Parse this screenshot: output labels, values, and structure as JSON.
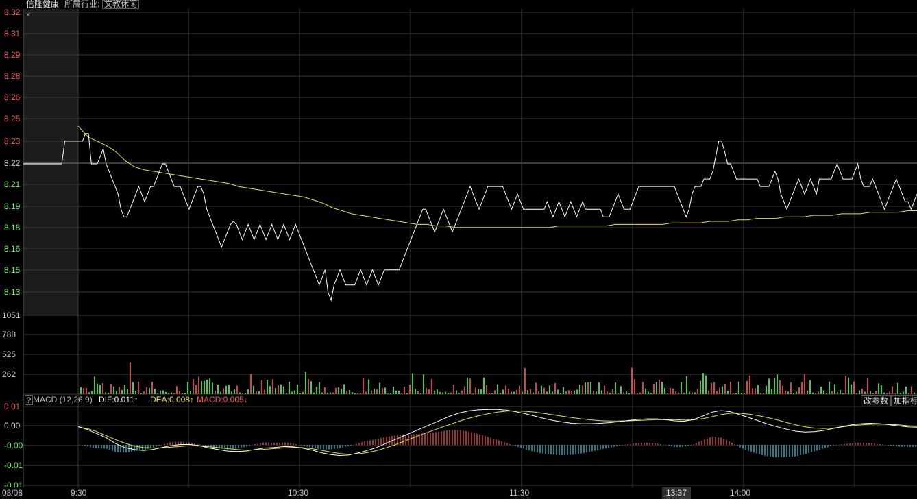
{
  "header": {
    "stock_name": "信隆健康",
    "industry_label": "所属行业:",
    "industry_value": "文教休闲"
  },
  "colors": {
    "price_line": "#ffffff",
    "avg_line": "#e6e633",
    "up": "#ff5a5a",
    "down": "#5aff5a",
    "neutral": "#d8d8d8",
    "macd_neg": "#40d0e0",
    "grid": "#3a3a3a"
  },
  "price_axis": {
    "labels": [
      "8.32",
      "8.31",
      "8.29",
      "8.28",
      "8.26",
      "8.25",
      "8.23",
      "8.22",
      "8.21",
      "8.19",
      "8.18",
      "8.16",
      "8.15",
      "8.13"
    ],
    "prev_close": 8.22,
    "min": 8.12,
    "max": 8.32
  },
  "volume_axis": {
    "labels": [
      "1051",
      "788",
      "525",
      "262"
    ],
    "max": 1051
  },
  "macd_axis": {
    "labels": [
      "0.01",
      "0.00",
      "-0.00",
      "-0.01",
      "-0.01"
    ]
  },
  "macd_legend": {
    "help": "?",
    "name": "MACD (12,26,9)",
    "dif": "DIF:0.011↑",
    "dea": "DEA:0.008↑",
    "macd": "MACD:0.005↓"
  },
  "buttons": {
    "change_params": "改参数",
    "add_indicator": "加指标"
  },
  "time_axis": {
    "date": "08/08",
    "ticks": [
      "9:30",
      "10:30",
      "11:30",
      "13:37",
      "14:00"
    ],
    "cursor_time": "13:37"
  },
  "chart_data": {
    "type": "line",
    "price_series": [
      8.22,
      8.22,
      8.22,
      8.22,
      8.22,
      8.22,
      8.22,
      8.22,
      8.22,
      8.22,
      8.22,
      8.22,
      8.22,
      8.22,
      8.235,
      8.235,
      8.235,
      8.235,
      8.235,
      8.235,
      8.235,
      8.24,
      8.24,
      8.22,
      8.22,
      8.22,
      8.225,
      8.23,
      8.22,
      8.215,
      8.21,
      8.205,
      8.2,
      8.19,
      8.185,
      8.185,
      8.19,
      8.195,
      8.2,
      8.205,
      8.2,
      8.195,
      8.2,
      8.205,
      8.205,
      8.21,
      8.215,
      8.22,
      8.22,
      8.215,
      8.21,
      8.205,
      8.205,
      8.205,
      8.2,
      8.195,
      8.19,
      8.195,
      8.2,
      8.205,
      8.205,
      8.2,
      8.19,
      8.185,
      8.18,
      8.175,
      8.17,
      8.165,
      8.17,
      8.175,
      8.18,
      8.182,
      8.18,
      8.175,
      8.17,
      8.175,
      8.18,
      8.175,
      8.17,
      8.175,
      8.18,
      8.175,
      8.17,
      8.175,
      8.18,
      8.175,
      8.17,
      8.175,
      8.18,
      8.175,
      8.17,
      8.175,
      8.18,
      8.175,
      8.17,
      8.165,
      8.16,
      8.155,
      8.15,
      8.145,
      8.14,
      8.145,
      8.15,
      8.135,
      8.13,
      8.14,
      8.145,
      8.15,
      8.145,
      8.14,
      8.14,
      8.14,
      8.14,
      8.145,
      8.15,
      8.145,
      8.14,
      8.145,
      8.15,
      8.145,
      8.14,
      8.145,
      8.15,
      8.15,
      8.15,
      8.15,
      8.15,
      8.15,
      8.155,
      8.16,
      8.165,
      8.17,
      8.175,
      8.18,
      8.185,
      8.19,
      8.19,
      8.185,
      8.18,
      8.175,
      8.18,
      8.185,
      8.19,
      8.185,
      8.18,
      8.175,
      8.18,
      8.185,
      8.19,
      8.195,
      8.2,
      8.205,
      8.2,
      8.195,
      8.19,
      8.195,
      8.2,
      8.205,
      8.205,
      8.205,
      8.205,
      8.205,
      8.205,
      8.2,
      8.195,
      8.19,
      8.195,
      8.2,
      8.195,
      8.19,
      8.19,
      8.19,
      8.19,
      8.19,
      8.19,
      8.19,
      8.19,
      8.195,
      8.19,
      8.185,
      8.19,
      8.195,
      8.19,
      8.185,
      8.19,
      8.195,
      8.19,
      8.185,
      8.19,
      8.195,
      8.19,
      8.19,
      8.19,
      8.19,
      8.19,
      8.19,
      8.185,
      8.185,
      8.185,
      8.19,
      8.195,
      8.2,
      8.195,
      8.19,
      8.19,
      8.19,
      8.195,
      8.2,
      8.205,
      8.205,
      8.205,
      8.205,
      8.205,
      8.205,
      8.205,
      8.205,
      8.205,
      8.205,
      8.205,
      8.205,
      8.205,
      8.2,
      8.195,
      8.19,
      8.185,
      8.19,
      8.2,
      8.205,
      8.205,
      8.205,
      8.21,
      8.21,
      8.21,
      8.215,
      8.225,
      8.235,
      8.235,
      8.228,
      8.22,
      8.22,
      8.215,
      8.21,
      8.21,
      8.21,
      8.21,
      8.21,
      8.21,
      8.21,
      8.21,
      8.205,
      8.205,
      8.205,
      8.205,
      8.21,
      8.215,
      8.21,
      8.2,
      8.195,
      8.19,
      8.195,
      8.2,
      8.205,
      8.21,
      8.205,
      8.2,
      8.205,
      8.21,
      8.205,
      8.2,
      8.21,
      8.21,
      8.21,
      8.21,
      8.21,
      8.215,
      8.22,
      8.215,
      8.21,
      8.21,
      8.21,
      8.21,
      8.215,
      8.22,
      8.21,
      8.205,
      8.205,
      8.205,
      8.21,
      8.205,
      8.2,
      8.195,
      8.19,
      8.195,
      8.2,
      8.205,
      8.21,
      8.205,
      8.2,
      8.195,
      8.195,
      8.19,
      8.195,
      8.2
    ],
    "avg_series": [
      8.245,
      8.238,
      8.235,
      8.232,
      8.228,
      8.222,
      8.218,
      8.216,
      8.215,
      8.214,
      8.213,
      8.212,
      8.211,
      8.21,
      8.209,
      8.208,
      8.207,
      8.205,
      8.204,
      8.203,
      8.202,
      8.201,
      8.2,
      8.199,
      8.198,
      8.196,
      8.194,
      8.191,
      8.189,
      8.187,
      8.186,
      8.185,
      8.184,
      8.183,
      8.182,
      8.181,
      8.18,
      8.18,
      8.179,
      8.179,
      8.178,
      8.178,
      8.178,
      8.178,
      8.178,
      8.178,
      8.178,
      8.178,
      8.178,
      8.178,
      8.178,
      8.179,
      8.179,
      8.179,
      8.179,
      8.179,
      8.179,
      8.18,
      8.18,
      8.18,
      8.18,
      8.18,
      8.18,
      8.181,
      8.181,
      8.181,
      8.181,
      8.182,
      8.182,
      8.182,
      8.183,
      8.183,
      8.184,
      8.184,
      8.184,
      8.185,
      8.185,
      8.185,
      8.186,
      8.186,
      8.186,
      8.187,
      8.187,
      8.187,
      8.188,
      8.188,
      8.188,
      8.188,
      8.189,
      8.189
    ],
    "macd": {
      "dif": [
        -0.0004,
        -0.002,
        -0.004,
        -0.006,
        -0.009,
        -0.011,
        -0.012,
        -0.0125,
        -0.012,
        -0.011,
        -0.01,
        -0.0095,
        -0.0095,
        -0.01,
        -0.0112,
        -0.012,
        -0.0128,
        -0.013,
        -0.0128,
        -0.012,
        -0.0112,
        -0.011,
        -0.0105,
        -0.0106,
        -0.0112,
        -0.0122,
        -0.0135,
        -0.0145,
        -0.015,
        -0.0148,
        -0.0138,
        -0.0125,
        -0.011,
        -0.009,
        -0.007,
        -0.005,
        -0.003,
        -0.001,
        0.001,
        0.003,
        0.005,
        0.0065,
        0.0075,
        0.008,
        0.0082,
        0.0082,
        0.0078,
        0.007,
        0.006,
        0.0048,
        0.0036,
        0.0026,
        0.0018,
        0.0012,
        0.001,
        0.001,
        0.0012,
        0.0015,
        0.002,
        0.0026,
        0.0031,
        0.0034,
        0.0034,
        0.003,
        0.0024,
        0.0022,
        0.003,
        0.0048,
        0.0068,
        0.0076,
        0.007,
        0.0055,
        0.004,
        0.0024,
        0.0008,
        -0.0006,
        -0.0018,
        -0.0028,
        -0.0032,
        -0.003,
        -0.0024,
        -0.0014,
        -0.0004,
        0.0004,
        0.001,
        0.0012,
        0.001,
        0.0005,
        -0.0001,
        -0.0006,
        -0.0008
      ],
      "dea": [
        -0.0006,
        -0.0015,
        -0.003,
        -0.005,
        -0.007,
        -0.0088,
        -0.0102,
        -0.011,
        -0.0112,
        -0.0111,
        -0.0108,
        -0.0104,
        -0.0101,
        -0.0102,
        -0.0106,
        -0.011,
        -0.0115,
        -0.012,
        -0.0123,
        -0.0122,
        -0.0119,
        -0.0115,
        -0.0112,
        -0.011,
        -0.011,
        -0.0115,
        -0.0123,
        -0.0132,
        -0.014,
        -0.0144,
        -0.0142,
        -0.0136,
        -0.0126,
        -0.0112,
        -0.0096,
        -0.0078,
        -0.006,
        -0.0042,
        -0.0025,
        -0.0008,
        0.0008,
        0.0024,
        0.0038,
        0.005,
        0.006,
        0.0068,
        0.0073,
        0.0074,
        0.0072,
        0.0068,
        0.0061,
        0.0054,
        0.0047,
        0.004,
        0.0034,
        0.0029,
        0.0025,
        0.0023,
        0.0023,
        0.0024,
        0.0026,
        0.0028,
        0.003,
        0.003,
        0.003,
        0.0028,
        0.0029,
        0.0035,
        0.0045,
        0.0056,
        0.0062,
        0.0062,
        0.0058,
        0.005,
        0.004,
        0.0029,
        0.0016,
        0.0004,
        -0.0006,
        -0.0012,
        -0.0014,
        -0.0012,
        -0.0006,
        0.0,
        0.0004,
        0.0007,
        0.0008,
        0.0007,
        0.0004,
        0.0,
        -0.0003
      ]
    }
  }
}
